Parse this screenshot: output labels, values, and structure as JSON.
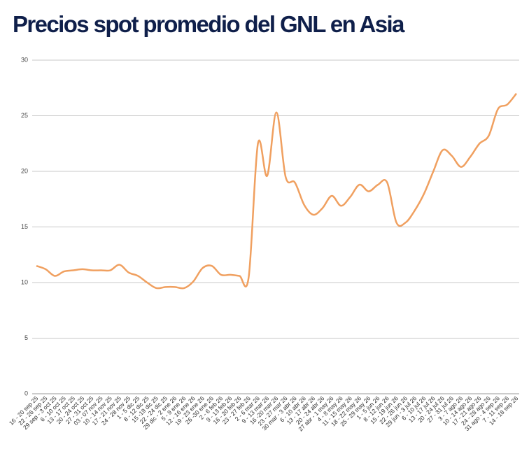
{
  "chart_data": {
    "type": "line",
    "title": "Precios spot promedio del GNL en Asia",
    "categories": [
      "16 - 20 sep 25",
      "22 - 26 sep 25",
      "29 sep - 3 oct 25",
      "6 - 10 oct 25",
      "13 - 17 oct 25",
      "20 - 24 oct 25",
      "27 - 31 oct 25",
      "03 - 07 nov 25",
      "10 - 14 nov 25",
      "17 - 21 nov 25",
      "24 - 28 nov 25",
      "1 - 5 dic 25",
      "8 - 12 dic 25",
      "15 -19 dic 25",
      "22 - 24 dic 25",
      "29 dic - 2 ene 26",
      "5 - 9 ene 26",
      "12 - 16 ene 26",
      "19 - 23 ene 26",
      "26 -30 ene 26",
      "2 - 6 feb 26",
      "9 - 13 feb 26",
      "16 - 20 feb 26",
      "23 - 27 feb 26",
      "2 - 6 mar 26",
      "9 - 13 mar 26",
      "16 -20 mar 26",
      "23 - 27 mar 26",
      "30 mar - 3 abr 26",
      "6 - 10 abr 26",
      "13 - 17 abr 26",
      "20 - 24 abr 26",
      "27 abr - 1 may 26",
      "4 - 8 may 26",
      "11 - 15 may 26",
      "18 - 22 may 26",
      "25 - 29 may 26",
      "1 - 5 jun 26",
      "8 - 12 jun 26",
      "15 - 19 jun 26",
      "22 - 26 jun 26",
      "29 jun - 3 jul 26",
      "6 - 10 jul 26",
      "13 - 17 jul 26",
      "20 - 24 jul 26",
      "27 - 31 jul 26",
      "3 - 7 ago 26",
      "10 - 14 ago 26",
      "17 - 21 ago 26",
      "24 - 28 ago 26",
      "31 ago - 4 sep 26",
      "7 - 11 sep 26",
      "14 - 18 sep 26"
    ],
    "series": [
      {
        "color": "#f0a060",
        "values": [
          11.5,
          11.2,
          10.6,
          11.0,
          11.1,
          11.2,
          11.1,
          11.1,
          11.1,
          11.6,
          10.9,
          10.6,
          10.0,
          9.5,
          9.6,
          9.6,
          9.5,
          10.1,
          11.3,
          11.5,
          10.7,
          10.7,
          10.6,
          10.5,
          22.5,
          19.6,
          25.3,
          19.5,
          19.0,
          17.0,
          16.1,
          16.7,
          17.8,
          16.9,
          17.7,
          18.8,
          18.2,
          18.8,
          19.0,
          15.4,
          15.4,
          16.5,
          18.0,
          20.0,
          21.9,
          21.4,
          20.4,
          21.3,
          22.5,
          23.2,
          25.6,
          26.0,
          27.0
        ]
      }
    ],
    "ylim": [
      0,
      30
    ],
    "yticks": [
      0,
      5,
      10,
      15,
      20,
      25,
      30
    ],
    "grid": true
  }
}
